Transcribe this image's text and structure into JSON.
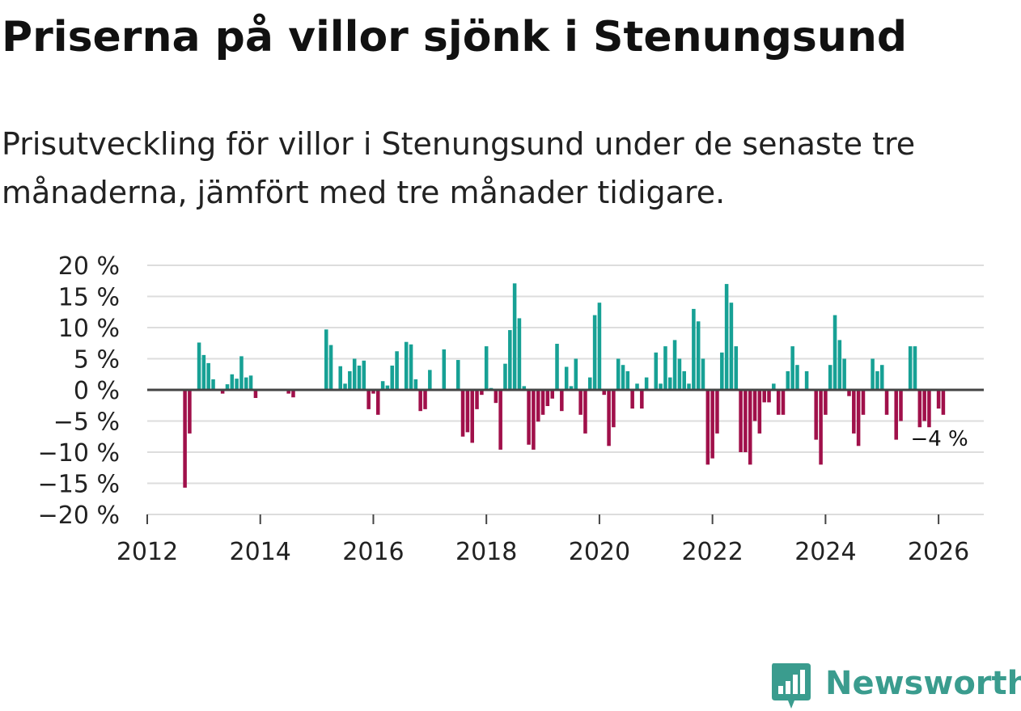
{
  "header": {
    "title": "Priserna på villor sjönk i Stenungsund",
    "subtitle": "Prisutveckling för villor i Stenungsund under de senaste tre månaderna, jämfört med tre månader tidigare."
  },
  "brand": {
    "name": "Newsworthy",
    "color": "#3a9c8e"
  },
  "colors": {
    "positive": "#17a195",
    "negative": "#a0104a",
    "grid": "#dddddd",
    "zero": "#444444",
    "text": "#222222"
  },
  "chart_data": {
    "type": "bar",
    "x_unit": "year (decimal)",
    "xlim": [
      2012,
      2026.8
    ],
    "ylim": [
      -20,
      20
    ],
    "x_ticks": [
      2012,
      2014,
      2016,
      2018,
      2020,
      2022,
      2024,
      2026
    ],
    "x_tick_labels": [
      "2012",
      "2014",
      "2016",
      "2018",
      "2020",
      "2022",
      "2024",
      "2026"
    ],
    "y_ticks": [
      20,
      15,
      10,
      5,
      0,
      -5,
      -10,
      -15,
      -20
    ],
    "y_tick_labels": [
      "20 %",
      "15 %",
      "10 %",
      "5 %",
      "0 %",
      "−5 %",
      "−10 %",
      "−15 %",
      "−20 %"
    ],
    "annotation": {
      "text": "−4 %",
      "x": 2026.0,
      "y": -4
    },
    "series": [
      {
        "name": "Prisutveckling",
        "points": [
          [
            2012.667,
            -15.7
          ],
          [
            2012.75,
            -7
          ],
          [
            2012.917,
            7.6
          ],
          [
            2013.0,
            5.6
          ],
          [
            2013.083,
            4.3
          ],
          [
            2013.167,
            1.7
          ],
          [
            2013.333,
            -0.6
          ],
          [
            2013.417,
            0.9
          ],
          [
            2013.5,
            2.5
          ],
          [
            2013.583,
            1.8
          ],
          [
            2013.667,
            5.4
          ],
          [
            2013.75,
            2.0
          ],
          [
            2013.833,
            2.3
          ],
          [
            2013.917,
            -1.3
          ],
          [
            2014.5,
            -0.6
          ],
          [
            2014.583,
            -1.2
          ],
          [
            2015.167,
            9.7
          ],
          [
            2015.25,
            7.2
          ],
          [
            2015.417,
            3.8
          ],
          [
            2015.5,
            1.0
          ],
          [
            2015.583,
            3.0
          ],
          [
            2015.667,
            5.0
          ],
          [
            2015.75,
            3.9
          ],
          [
            2015.833,
            4.7
          ],
          [
            2015.917,
            -3.1
          ],
          [
            2016.0,
            -0.6
          ],
          [
            2016.083,
            -4.0
          ],
          [
            2016.167,
            1.4
          ],
          [
            2016.25,
            0.7
          ],
          [
            2016.333,
            3.9
          ],
          [
            2016.417,
            6.2
          ],
          [
            2016.583,
            7.7
          ],
          [
            2016.667,
            7.3
          ],
          [
            2016.75,
            1.7
          ],
          [
            2016.833,
            -3.4
          ],
          [
            2016.917,
            -3.1
          ],
          [
            2017.0,
            3.2
          ],
          [
            2017.25,
            6.5
          ],
          [
            2017.5,
            4.8
          ],
          [
            2017.583,
            -7.5
          ],
          [
            2017.667,
            -6.8
          ],
          [
            2017.75,
            -8.5
          ],
          [
            2017.833,
            -3.1
          ],
          [
            2017.917,
            -0.8
          ],
          [
            2018.0,
            7.0
          ],
          [
            2018.083,
            0.3
          ],
          [
            2018.167,
            -2.1
          ],
          [
            2018.25,
            -9.6
          ],
          [
            2018.333,
            4.2
          ],
          [
            2018.417,
            9.6
          ],
          [
            2018.5,
            17.1
          ],
          [
            2018.583,
            11.5
          ],
          [
            2018.667,
            0.6
          ],
          [
            2018.75,
            -8.8
          ],
          [
            2018.833,
            -9.6
          ],
          [
            2018.917,
            -5.1
          ],
          [
            2019.0,
            -4.0
          ],
          [
            2019.083,
            -2.6
          ],
          [
            2019.167,
            -1.4
          ],
          [
            2019.25,
            7.4
          ],
          [
            2019.333,
            -3.4
          ],
          [
            2019.417,
            3.7
          ],
          [
            2019.5,
            0.6
          ],
          [
            2019.583,
            5.0
          ],
          [
            2019.667,
            -4.0
          ],
          [
            2019.75,
            -7.0
          ],
          [
            2019.833,
            2.0
          ],
          [
            2019.917,
            12.0
          ],
          [
            2020.0,
            14.0
          ],
          [
            2020.083,
            -0.8
          ],
          [
            2020.167,
            -9.0
          ],
          [
            2020.25,
            -6.0
          ],
          [
            2020.333,
            5.0
          ],
          [
            2020.417,
            4.0
          ],
          [
            2020.5,
            3.0
          ],
          [
            2020.583,
            -3.0
          ],
          [
            2020.667,
            1.0
          ],
          [
            2020.75,
            -3.0
          ],
          [
            2020.833,
            2.0
          ],
          [
            2021.0,
            6.0
          ],
          [
            2021.083,
            1.0
          ],
          [
            2021.167,
            7.0
          ],
          [
            2021.25,
            2.0
          ],
          [
            2021.333,
            8.0
          ],
          [
            2021.417,
            5.0
          ],
          [
            2021.5,
            3.0
          ],
          [
            2021.583,
            1.0
          ],
          [
            2021.667,
            13.0
          ],
          [
            2021.75,
            11.0
          ],
          [
            2021.833,
            5.0
          ],
          [
            2021.917,
            -12.0
          ],
          [
            2022.0,
            -11.0
          ],
          [
            2022.083,
            -7.0
          ],
          [
            2022.167,
            6.0
          ],
          [
            2022.25,
            17.0
          ],
          [
            2022.333,
            14.0
          ],
          [
            2022.417,
            7.0
          ],
          [
            2022.5,
            -10.0
          ],
          [
            2022.583,
            -10.0
          ],
          [
            2022.667,
            -12.0
          ],
          [
            2022.75,
            -5.0
          ],
          [
            2022.833,
            -7.0
          ],
          [
            2022.917,
            -2.0
          ],
          [
            2023.0,
            -2.0
          ],
          [
            2023.083,
            1.0
          ],
          [
            2023.167,
            -4.0
          ],
          [
            2023.25,
            -4.0
          ],
          [
            2023.333,
            3.0
          ],
          [
            2023.417,
            7.0
          ],
          [
            2023.5,
            4.0
          ],
          [
            2023.667,
            3.0
          ],
          [
            2023.833,
            -8.0
          ],
          [
            2023.917,
            -12.0
          ],
          [
            2024.0,
            -4.0
          ],
          [
            2024.083,
            4.0
          ],
          [
            2024.167,
            12.0
          ],
          [
            2024.25,
            8.0
          ],
          [
            2024.333,
            5.0
          ],
          [
            2024.417,
            -1.0
          ],
          [
            2024.5,
            -7.0
          ],
          [
            2024.583,
            -9.0
          ],
          [
            2024.667,
            -4.0
          ],
          [
            2024.833,
            5.0
          ],
          [
            2024.917,
            3.0
          ],
          [
            2025.0,
            4.0
          ],
          [
            2025.083,
            -4.0
          ],
          [
            2025.25,
            -8.0
          ],
          [
            2025.333,
            -5.0
          ],
          [
            2025.5,
            7.0
          ],
          [
            2025.583,
            7.0
          ],
          [
            2025.667,
            -6.0
          ],
          [
            2025.75,
            -5.0
          ],
          [
            2025.833,
            -6.0
          ],
          [
            2026.0,
            -3.0
          ],
          [
            2026.083,
            -4.0
          ]
        ]
      }
    ]
  }
}
